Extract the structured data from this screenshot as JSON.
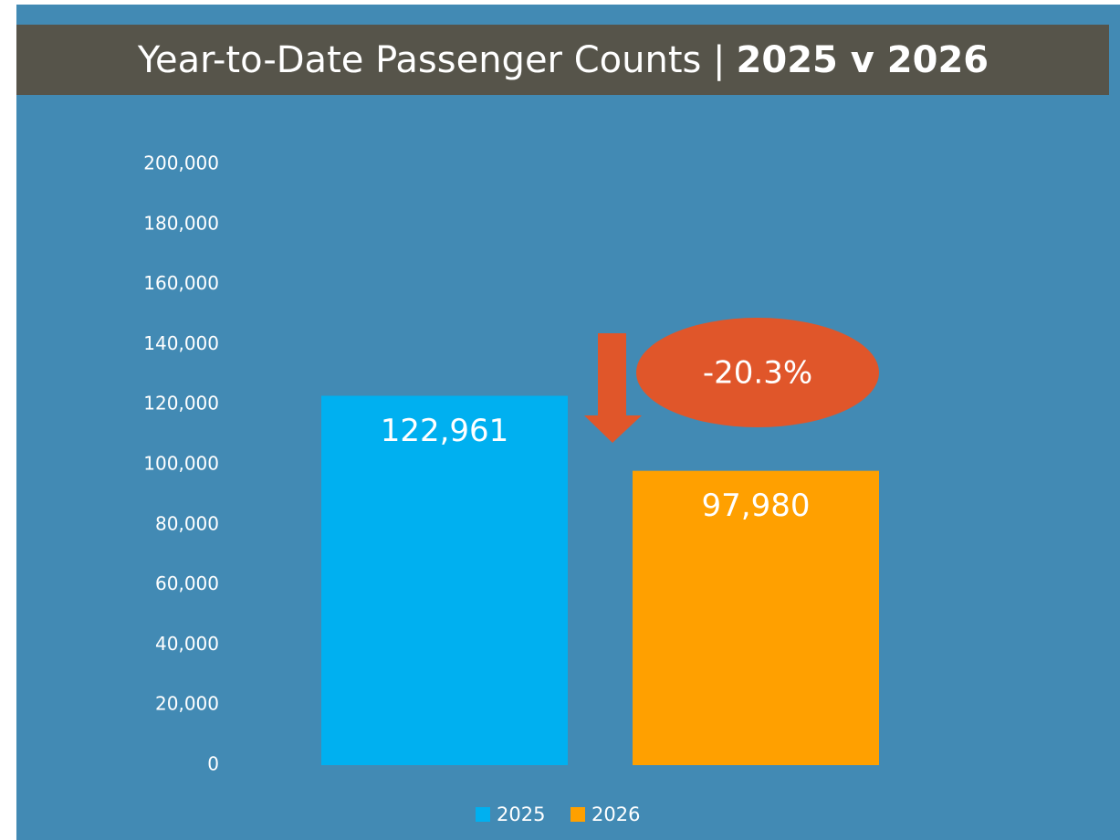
{
  "chart_data": {
    "type": "bar",
    "title": "Year-to-Date Passenger Counts |",
    "title_bold": "2025 v 2026",
    "categories": [
      null
    ],
    "series": [
      {
        "name": "2025",
        "color": "#00b0f0",
        "values": [
          122961
        ],
        "value_labels": [
          "122,961"
        ]
      },
      {
        "name": "2026",
        "color": "#ffa000",
        "values": [
          97980
        ],
        "value_labels": [
          "97,980"
        ]
      }
    ],
    "ylim": [
      0,
      200000
    ],
    "yticks": [
      0,
      {
        "value": 20000,
        "label": "20,000"
      },
      {
        "value": 40000,
        "label": "40,000"
      },
      {
        "value": 60000,
        "label": "60,000"
      },
      {
        "value": 80000,
        "label": "80,000"
      },
      {
        "value": 100000,
        "label": "100,000"
      },
      {
        "value": 120000,
        "label": "120,000"
      },
      {
        "value": 140000,
        "label": "140,000"
      },
      {
        "value": 160000,
        "label": "160,000"
      },
      {
        "value": 180000,
        "label": "180,000"
      },
      {
        "value": 200000,
        "label": "200,000"
      }
    ],
    "grid": false,
    "legend": "bottom",
    "annotation": {
      "text": "-20.3%",
      "color": "#e0562a"
    }
  }
}
